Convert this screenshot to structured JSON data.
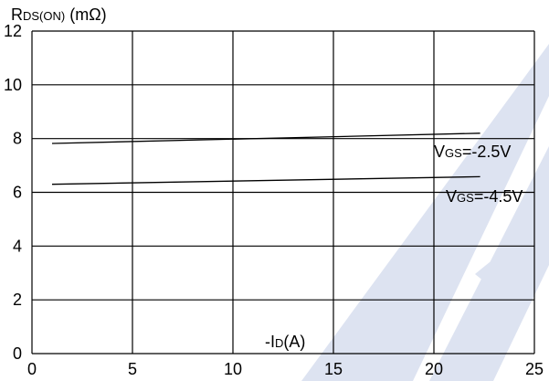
{
  "chart_data": {
    "type": "line",
    "title": "",
    "ylabel": {
      "main": "R",
      "sub": "DS(ON)",
      "unit": " (mΩ)"
    },
    "xlabel": {
      "prefix": "-I",
      "sub": "D",
      "unit": "(A)"
    },
    "xlim": [
      0,
      25
    ],
    "ylim": [
      0,
      12
    ],
    "x_ticks": [
      "0",
      "5",
      "10",
      "15",
      "20",
      "25"
    ],
    "y_ticks": [
      "0",
      "2",
      "4",
      "6",
      "8",
      "10",
      "12"
    ],
    "grid": true,
    "series": [
      {
        "name": {
          "main": "V",
          "sub": "GS",
          "rest": "=-2.5V"
        },
        "x": [
          1,
          22.3
        ],
        "y": [
          7.82,
          8.2
        ]
      },
      {
        "name": {
          "main": "V",
          "sub": "GS",
          "rest": "=-4.5V"
        },
        "x": [
          1,
          22.3
        ],
        "y": [
          6.3,
          6.58
        ]
      }
    ],
    "line_color": "#000000",
    "watermark_color": "#dde3f1"
  }
}
